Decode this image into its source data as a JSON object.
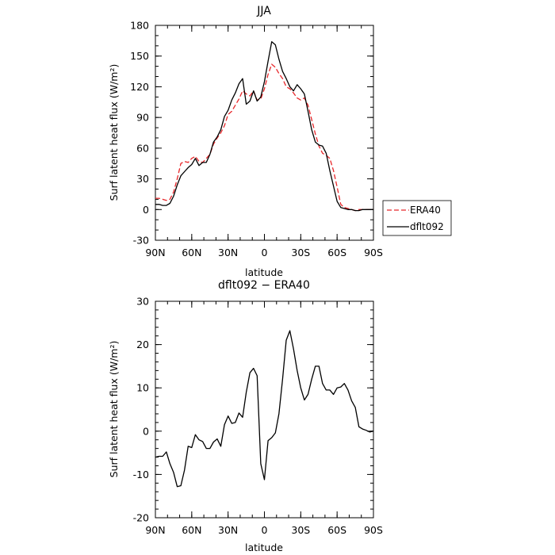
{
  "chart_data": [
    {
      "type": "line",
      "title": "JJA",
      "xlabel": "latitude",
      "ylabel": "Surf latent heat flux (W/m²)",
      "xlim": [
        90,
        -90
      ],
      "ylim": [
        -30,
        180
      ],
      "x_ticks": [
        {
          "value": 90,
          "label": "90N"
        },
        {
          "value": 60,
          "label": "60N"
        },
        {
          "value": 30,
          "label": "30N"
        },
        {
          "value": 0,
          "label": "0"
        },
        {
          "value": -30,
          "label": "30S"
        },
        {
          "value": -60,
          "label": "60S"
        },
        {
          "value": -90,
          "label": "90S"
        }
      ],
      "y_ticks": [
        -30,
        0,
        30,
        60,
        90,
        120,
        150,
        180
      ],
      "legend": {
        "placement": "right"
      },
      "series": [
        {
          "name": "ERA40",
          "color": "#e8272a",
          "dash": "dashed",
          "x": [
            90,
            87,
            84,
            81,
            78,
            75,
            72,
            69,
            66,
            63,
            60,
            57,
            54,
            51,
            48,
            45,
            42,
            39,
            36,
            33,
            30,
            27,
            24,
            21,
            18,
            15,
            12,
            9,
            6,
            3,
            0,
            -3,
            -6,
            -9,
            -12,
            -15,
            -18,
            -21,
            -24,
            -27,
            -30,
            -33,
            -36,
            -39,
            -42,
            -45,
            -48,
            -51,
            -54,
            -57,
            -60,
            -63,
            -66,
            -69,
            -72,
            -75,
            -78,
            -81,
            -84,
            -87,
            -90
          ],
          "y": [
            11,
            11,
            10,
            9,
            10,
            17,
            30,
            45,
            47,
            46,
            50,
            52,
            47,
            46,
            50,
            54,
            64,
            70,
            75,
            82,
            93,
            96,
            102,
            108,
            116,
            113,
            111,
            116,
            107,
            108,
            118,
            132,
            142,
            139,
            133,
            128,
            120,
            118,
            114,
            109,
            107,
            109,
            102,
            88,
            74,
            62,
            55,
            53,
            50,
            38,
            22,
            5,
            2,
            1,
            0,
            -1,
            0,
            0,
            0,
            0,
            0
          ]
        },
        {
          "name": "dflt092",
          "color": "#000000",
          "dash": "solid",
          "x": [
            90,
            87,
            84,
            81,
            78,
            75,
            72,
            69,
            66,
            63,
            60,
            57,
            54,
            51,
            48,
            45,
            42,
            39,
            36,
            33,
            30,
            27,
            24,
            21,
            18,
            15,
            12,
            9,
            6,
            3,
            0,
            -3,
            -6,
            -9,
            -12,
            -15,
            -18,
            -21,
            -24,
            -27,
            -30,
            -33,
            -36,
            -39,
            -42,
            -45,
            -48,
            -51,
            -54,
            -57,
            -60,
            -63,
            -66,
            -69,
            -72,
            -75,
            -78,
            -81,
            -84,
            -87,
            -90
          ],
          "y": [
            5,
            5,
            4,
            4,
            6,
            13,
            24,
            33,
            37,
            41,
            44,
            50,
            43,
            46,
            46,
            54,
            66,
            71,
            78,
            91,
            97,
            107,
            114,
            123,
            128,
            103,
            106,
            116,
            106,
            110,
            125,
            145,
            164,
            161,
            147,
            135,
            128,
            120,
            116,
            122,
            118,
            113,
            96,
            78,
            66,
            63,
            62,
            55,
            38,
            23,
            8,
            2,
            1,
            0,
            0,
            -1,
            -1,
            0,
            0,
            0,
            0
          ]
        }
      ]
    },
    {
      "type": "line",
      "title": "dflt092 − ERA40",
      "xlabel": "latitude",
      "ylabel": "Surf latent heat flux (W/m²)",
      "xlim": [
        90,
        -90
      ],
      "ylim": [
        -20,
        30
      ],
      "x_ticks": [
        {
          "value": 90,
          "label": "90N"
        },
        {
          "value": 60,
          "label": "60N"
        },
        {
          "value": 30,
          "label": "30N"
        },
        {
          "value": 0,
          "label": "0"
        },
        {
          "value": -30,
          "label": "30S"
        },
        {
          "value": -60,
          "label": "60S"
        },
        {
          "value": -90,
          "label": "90S"
        }
      ],
      "y_ticks": [
        -20,
        -10,
        0,
        10,
        20,
        30
      ],
      "series": [
        {
          "color": "#000000",
          "dash": "solid",
          "x": [
            90,
            87,
            84,
            81,
            78,
            75,
            72,
            69,
            66,
            63,
            60,
            57,
            54,
            51,
            48,
            45,
            42,
            39,
            36,
            33,
            30,
            27,
            24,
            21,
            18,
            15,
            12,
            9,
            6,
            3,
            0,
            -3,
            -6,
            -9,
            -12,
            -15,
            -18,
            -21,
            -24,
            -27,
            -30,
            -33,
            -36,
            -39,
            -42,
            -45,
            -48,
            -51,
            -54,
            -57,
            -60,
            -63,
            -66,
            -69,
            -72,
            -75,
            -78,
            -81,
            -84,
            -87,
            -90
          ],
          "y": [
            -6,
            -5.8,
            -5.8,
            -4.8,
            -7.5,
            -9.5,
            -12.8,
            -12.6,
            -9,
            -3.5,
            -3.8,
            -0.8,
            -2,
            -2.4,
            -4,
            -4,
            -2.5,
            -1.8,
            -3.5,
            1.5,
            3.5,
            1.8,
            2,
            4.2,
            3.2,
            9,
            13.5,
            14.5,
            12.8,
            -7.5,
            -11.2,
            -2.2,
            -1.5,
            -0.4,
            4,
            12,
            21,
            23.2,
            19,
            14,
            10,
            7.2,
            8.5,
            12,
            15,
            15,
            11,
            9.5,
            9.5,
            8.5,
            10,
            10.2,
            11,
            9.5,
            7,
            5.5,
            1,
            0.5,
            0.2,
            -0.2,
            0
          ]
        }
      ]
    }
  ]
}
